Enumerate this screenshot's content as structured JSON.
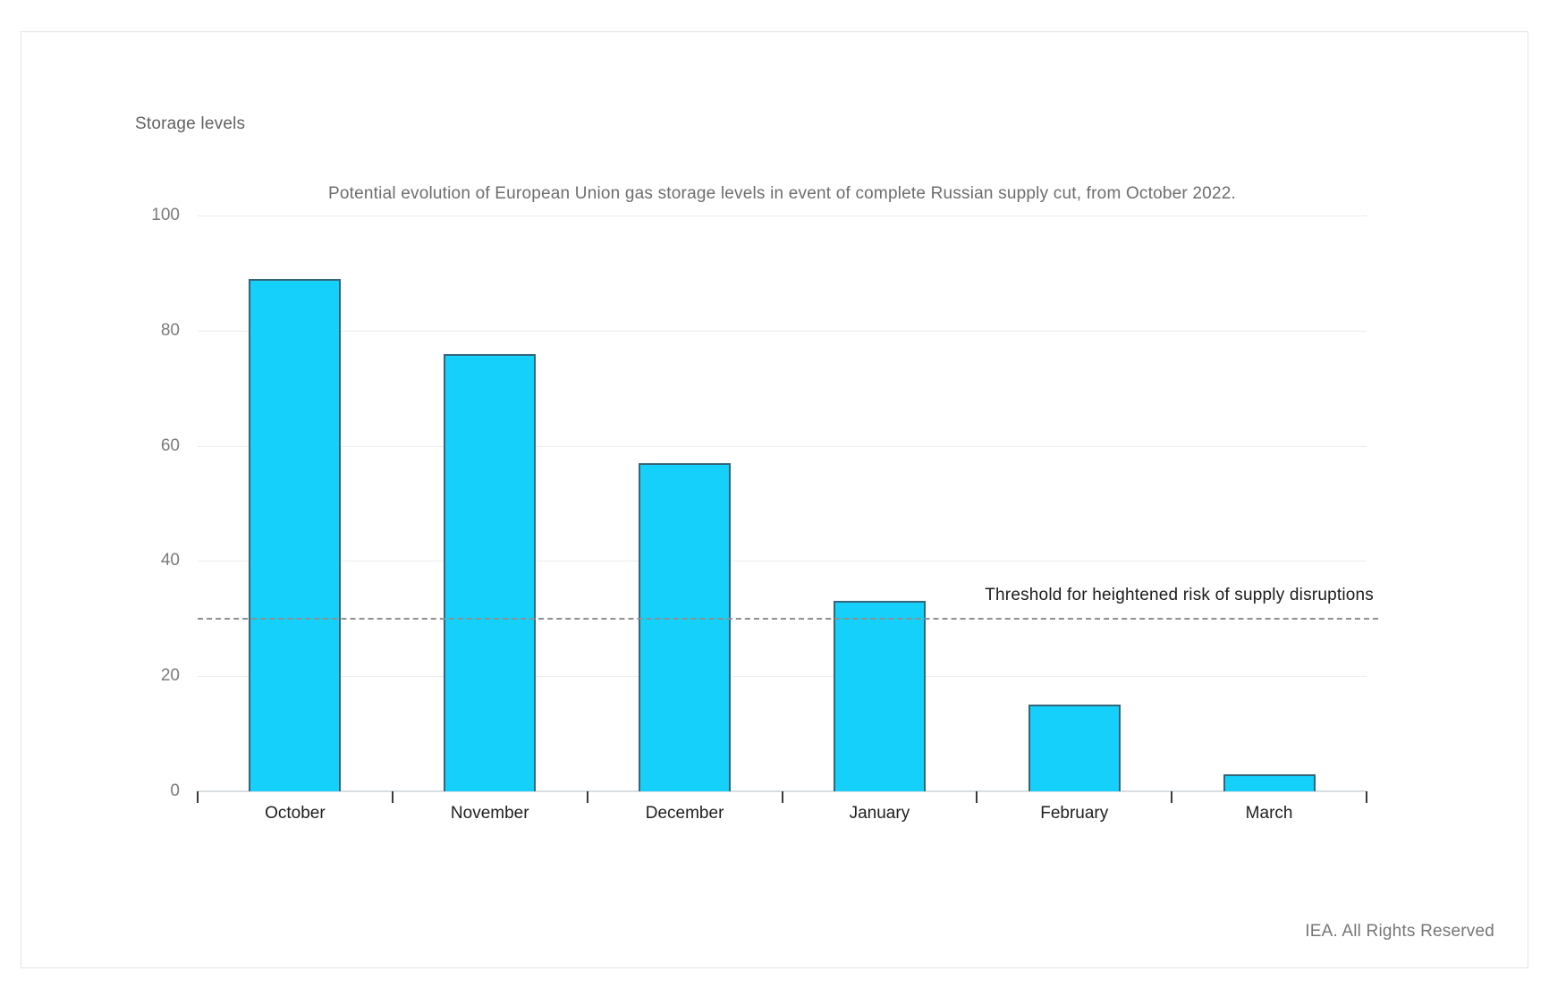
{
  "card": {
    "background": "#ffffff",
    "border_color": "#e4e4e4"
  },
  "chart_data": {
    "type": "bar",
    "title": "Potential evolution of European Union gas storage levels in event of complete Russian supply cut, from October 2022.",
    "ylabel": "Storage levels",
    "xlabel": "",
    "categories": [
      "October",
      "November",
      "December",
      "January",
      "February",
      "March"
    ],
    "values": [
      89,
      76,
      57,
      33,
      15,
      3
    ],
    "ylim": [
      0,
      100
    ],
    "yticks": [
      0,
      20,
      40,
      60,
      80,
      100
    ],
    "grid": "horizontal",
    "legend": "none",
    "bar_color": "#14d0fa",
    "bar_border_color": "#34657a",
    "gridline_color": "#ececec",
    "axis_line_color": "#d9dee3",
    "threshold": {
      "value": 30,
      "label": "Threshold for heightened risk of supply disruptions",
      "line_style": "dashed",
      "line_color": "#8f8f8f"
    }
  },
  "footer": {
    "text": "IEA. All Rights Reserved"
  }
}
